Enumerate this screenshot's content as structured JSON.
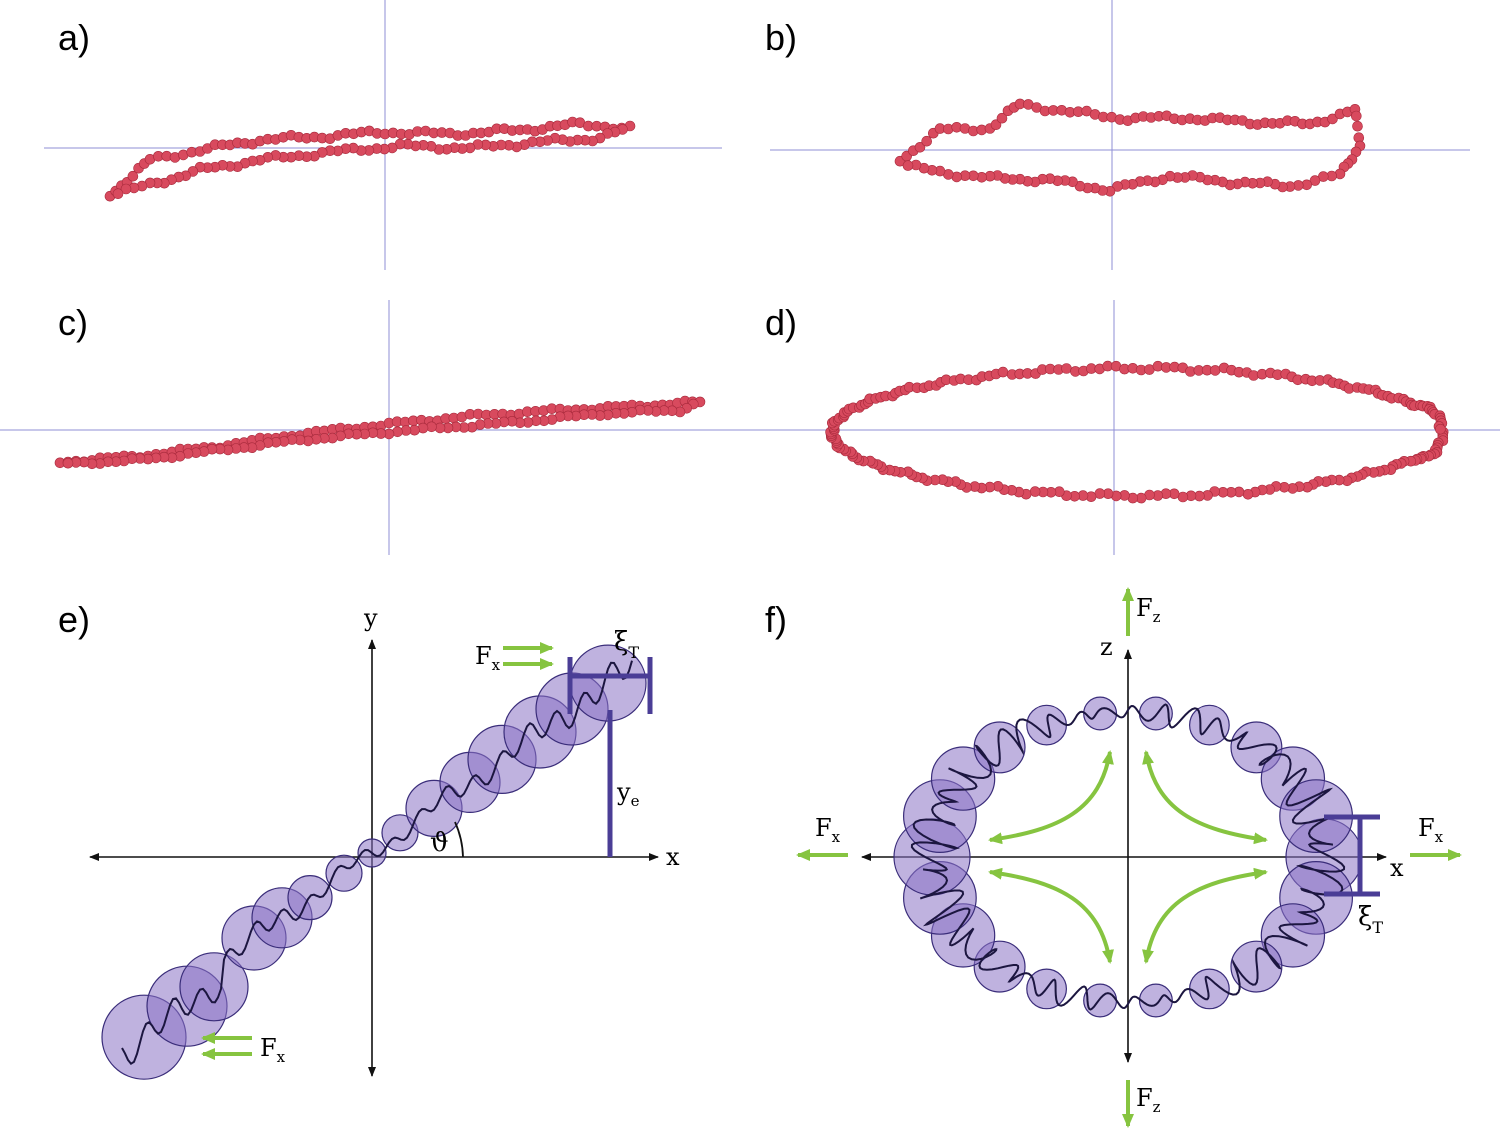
{
  "panels": {
    "a": {
      "label": "a)"
    },
    "b": {
      "label": "b)"
    },
    "c": {
      "label": "c)"
    },
    "d": {
      "label": "d)"
    },
    "e": {
      "label": "e)",
      "axis_x": "x",
      "axis_y": "y",
      "force_top": "F",
      "force_top_sub": "x",
      "force_bottom": "F",
      "force_bottom_sub": "x",
      "xi": "ξ",
      "xi_sub": "T",
      "ye": "y",
      "ye_sub": "e",
      "theta": "ϑ"
    },
    "f": {
      "label": "f)",
      "axis_x": "x",
      "axis_z": "z",
      "force_top": "F",
      "force_top_sub": "z",
      "force_bottom": "F",
      "force_bottom_sub": "z",
      "force_left": "F",
      "force_left_sub": "x",
      "force_right": "F",
      "force_right_sub": "x",
      "xi": "ξ",
      "xi_sub": "T"
    }
  },
  "colors": {
    "beads": "#d84a5e",
    "blobs": "#8a73c4",
    "arrows": "#86c440",
    "bars": "#4a3d96"
  }
}
